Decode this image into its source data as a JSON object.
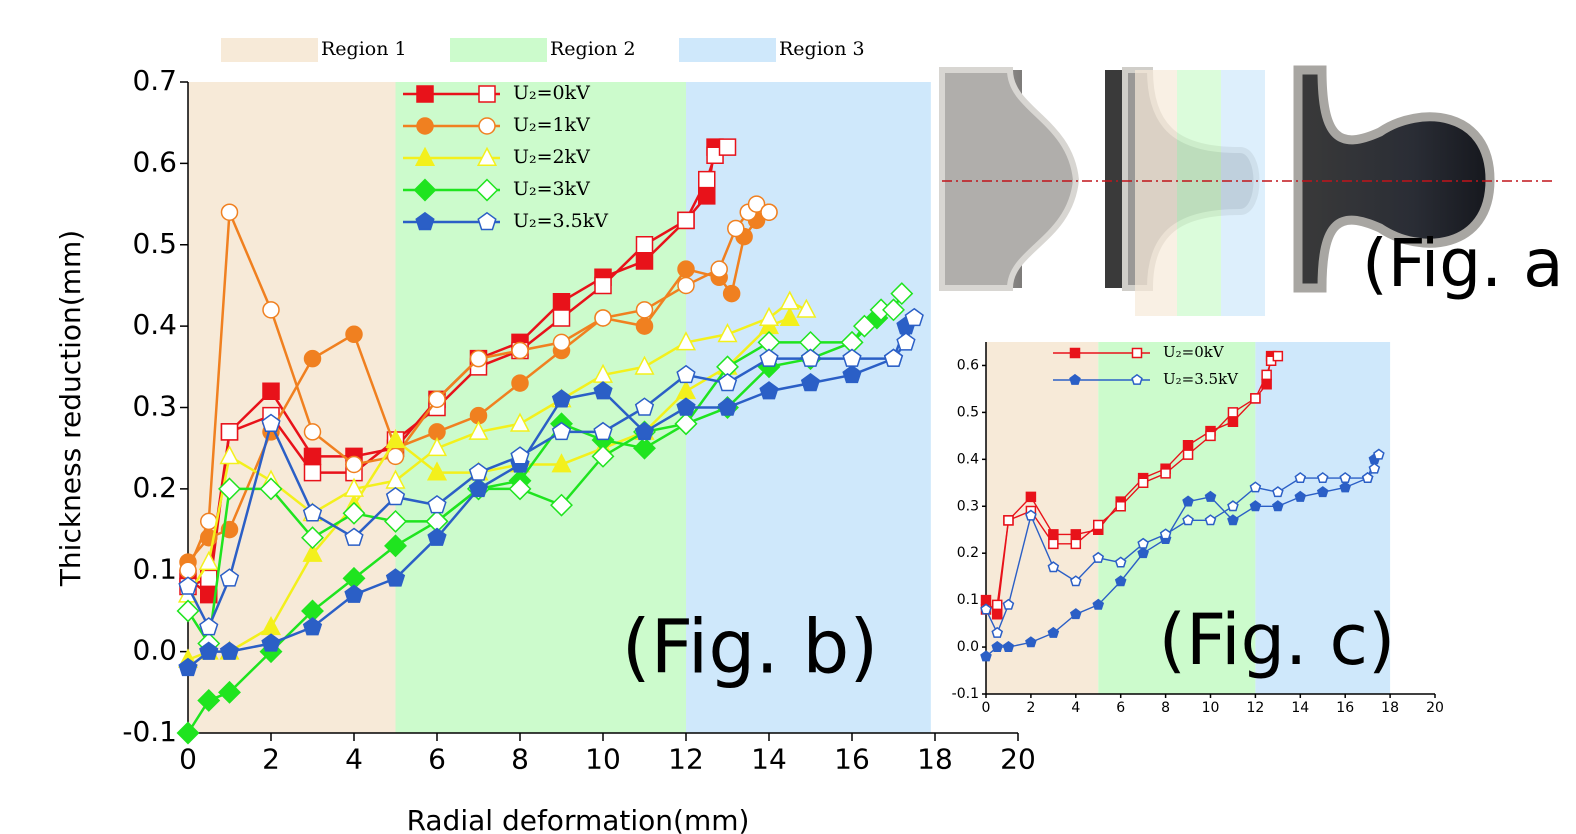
{
  "chart_data": [
    {
      "type": "line",
      "annotation": "(Fig. b)",
      "x_label": "Radial deformation(mm)",
      "y_label": "Thickness reduction(mm)",
      "xlim": [
        0,
        20
      ],
      "ylim": [
        -0.1,
        0.7
      ],
      "xticks": [
        0,
        2,
        4,
        6,
        8,
        10,
        12,
        14,
        16,
        18,
        20
      ],
      "yticks": [
        -0.1,
        {
          "value": 0,
          "label": "0.0"
        },
        0.1,
        0.2,
        0.3,
        0.4,
        0.5,
        0.6,
        0.7
      ],
      "regions": [
        {
          "name": "Region 1",
          "range": [
            0,
            5
          ],
          "color": "#f7ead8"
        },
        {
          "name": "Region 2",
          "range": [
            5,
            12
          ],
          "color": "#ccfbcc"
        },
        {
          "name": "Region 3",
          "range": [
            12,
            17.9
          ],
          "color": "#cfe8fb"
        }
      ],
      "series": [
        {
          "name": "U₂=0kV",
          "color": "#e8121a",
          "marker": "square",
          "filled": {
            "x": [
              0,
              0.5,
              1,
              2,
              3,
              4,
              5,
              6,
              7,
              8,
              9,
              10,
              11,
              12,
              12.5,
              12.7
            ],
            "values": [
              0.09,
              0.07,
              0.27,
              0.32,
              0.24,
              0.24,
              0.25,
              0.31,
              0.36,
              0.38,
              0.43,
              0.46,
              0.48,
              0.53,
              0.56,
              0.62
            ]
          },
          "open": {
            "x": [
              0,
              0.5,
              1,
              2,
              3,
              4,
              5,
              6,
              7,
              8,
              9,
              10,
              11,
              12,
              12.5,
              12.7,
              13
            ],
            "values": [
              0.08,
              0.09,
              0.27,
              0.29,
              0.22,
              0.22,
              0.26,
              0.3,
              0.35,
              0.37,
              0.41,
              0.45,
              0.5,
              0.53,
              0.58,
              0.61,
              0.62
            ]
          }
        },
        {
          "name": "U₂=1kV",
          "color": "#f08020",
          "marker": "circle",
          "filled": {
            "x": [
              0,
              0.5,
              1,
              2,
              3,
              4,
              5,
              6,
              7,
              8,
              9,
              10,
              11,
              12,
              12.8,
              13.1,
              13.4,
              13.7,
              14
            ],
            "values": [
              0.11,
              0.14,
              0.15,
              0.27,
              0.36,
              0.39,
              0.25,
              0.27,
              0.29,
              0.33,
              0.37,
              0.41,
              0.4,
              0.47,
              0.46,
              0.44,
              0.51,
              0.53,
              0.54
            ]
          },
          "open": {
            "x": [
              0,
              0.5,
              1,
              2,
              3,
              4,
              5,
              6,
              7,
              8,
              9,
              10,
              11,
              12,
              12.8,
              13.2,
              13.5,
              13.7,
              14
            ],
            "values": [
              0.1,
              0.16,
              0.54,
              0.42,
              0.27,
              0.23,
              0.24,
              0.31,
              0.36,
              0.37,
              0.38,
              0.41,
              0.42,
              0.45,
              0.47,
              0.52,
              0.54,
              0.55,
              0.54
            ]
          }
        },
        {
          "name": "U₂=2kV",
          "color": "#f3f01c",
          "marker": "triangle",
          "filled": {
            "x": [
              0,
              0.5,
              1,
              2,
              3,
              4,
              5,
              6,
              7,
              8,
              9,
              10,
              11,
              12,
              13,
              14,
              14.5
            ],
            "values": [
              -0.01,
              0.0,
              0.0,
              0.03,
              0.12,
              0.18,
              0.26,
              0.22,
              0.22,
              0.23,
              0.23,
              0.25,
              0.27,
              0.32,
              0.35,
              0.4,
              0.41
            ]
          },
          "open": {
            "x": [
              0,
              0.5,
              1,
              2,
              3,
              4,
              5,
              6,
              7,
              8,
              9,
              10,
              11,
              12,
              13,
              14,
              14.5,
              14.9
            ],
            "values": [
              0.07,
              0.11,
              0.24,
              0.21,
              0.17,
              0.2,
              0.21,
              0.25,
              0.27,
              0.28,
              0.31,
              0.34,
              0.35,
              0.38,
              0.39,
              0.41,
              0.43,
              0.42
            ]
          }
        },
        {
          "name": "U₂=3kV",
          "color": "#1fe41f",
          "marker": "diamond",
          "filled": {
            "x": [
              0,
              0.5,
              1,
              2,
              3,
              4,
              5,
              6,
              7,
              8,
              9,
              10,
              11,
              12,
              13,
              14,
              15,
              16,
              16.6
            ],
            "values": [
              -0.1,
              -0.06,
              -0.05,
              0.0,
              0.05,
              0.09,
              0.13,
              0.16,
              0.2,
              0.21,
              0.28,
              0.26,
              0.25,
              0.28,
              0.3,
              0.35,
              0.36,
              0.38,
              0.41
            ]
          },
          "open": {
            "x": [
              0,
              0.5,
              1,
              2,
              3,
              4,
              5,
              6,
              7,
              8,
              9,
              10,
              11,
              12,
              13,
              14,
              15,
              16,
              16.3,
              16.7,
              17,
              17.2
            ],
            "values": [
              0.05,
              0.01,
              0.2,
              0.2,
              0.14,
              0.17,
              0.16,
              0.16,
              0.2,
              0.2,
              0.18,
              0.24,
              0.27,
              0.28,
              0.35,
              0.38,
              0.38,
              0.38,
              0.4,
              0.42,
              0.42,
              0.44
            ]
          }
        },
        {
          "name": "U₂=3.5kV",
          "color": "#2b5fc6",
          "marker": "pentagon",
          "filled": {
            "x": [
              0,
              0.5,
              1,
              2,
              3,
              4,
              5,
              6,
              7,
              8,
              9,
              10,
              11,
              12,
              13,
              14,
              15,
              16,
              17,
              17.3
            ],
            "values": [
              -0.02,
              0.0,
              0.0,
              0.01,
              0.03,
              0.07,
              0.09,
              0.14,
              0.2,
              0.23,
              0.31,
              0.32,
              0.27,
              0.3,
              0.3,
              0.32,
              0.33,
              0.34,
              0.36,
              0.4
            ]
          },
          "open": {
            "x": [
              0,
              0.5,
              1,
              2,
              3,
              4,
              5,
              6,
              7,
              8,
              9,
              10,
              11,
              12,
              13,
              14,
              15,
              16,
              17,
              17.3,
              17.5
            ],
            "values": [
              0.08,
              0.03,
              0.09,
              0.28,
              0.17,
              0.14,
              0.19,
              0.18,
              0.22,
              0.24,
              0.27,
              0.27,
              0.3,
              0.34,
              0.33,
              0.36,
              0.36,
              0.36,
              0.36,
              0.38,
              0.41
            ]
          }
        }
      ]
    },
    {
      "type": "line",
      "annotation": "(Fig. c)",
      "xlim": [
        0,
        20
      ],
      "ylim": [
        -0.1,
        0.65
      ],
      "xticks": [
        0,
        2,
        4,
        6,
        8,
        10,
        12,
        14,
        16,
        18,
        20
      ],
      "yticks": [
        -0.1,
        {
          "value": 0,
          "label": "0.0"
        },
        0.1,
        0.2,
        0.3,
        0.4,
        0.5,
        0.6
      ],
      "regions": [
        {
          "range": [
            0,
            5
          ],
          "color": "#f7ead8"
        },
        {
          "range": [
            5,
            12
          ],
          "color": "#ccfbcc"
        },
        {
          "range": [
            12,
            18
          ],
          "color": "#cfe8fb"
        }
      ],
      "series": [
        {
          "name": "U₂=0kV",
          "color": "#e8121a",
          "marker": "square",
          "filled": {
            "x": [
              0,
              0.5,
              1,
              2,
              3,
              4,
              5,
              6,
              7,
              8,
              9,
              10,
              11,
              12,
              12.5,
              12.7
            ],
            "values": [
              0.1,
              0.07,
              0.27,
              0.32,
              0.24,
              0.24,
              0.25,
              0.31,
              0.36,
              0.38,
              0.43,
              0.46,
              0.48,
              0.53,
              0.56,
              0.62
            ]
          },
          "open": {
            "x": [
              0,
              0.5,
              1,
              2,
              3,
              4,
              5,
              6,
              7,
              8,
              9,
              10,
              11,
              12,
              12.5,
              12.7,
              13
            ],
            "values": [
              0.08,
              0.09,
              0.27,
              0.29,
              0.22,
              0.22,
              0.26,
              0.3,
              0.35,
              0.37,
              0.41,
              0.45,
              0.5,
              0.53,
              0.58,
              0.61,
              0.62
            ]
          }
        },
        {
          "name": "U₂=3.5kV",
          "color": "#2b5fc6",
          "marker": "pentagon",
          "filled": {
            "x": [
              0,
              0.5,
              1,
              2,
              3,
              4,
              5,
              6,
              7,
              8,
              9,
              10,
              11,
              12,
              13,
              14,
              15,
              16,
              17,
              17.3
            ],
            "values": [
              -0.02,
              0.0,
              0.0,
              0.01,
              0.03,
              0.07,
              0.09,
              0.14,
              0.2,
              0.23,
              0.31,
              0.32,
              0.27,
              0.3,
              0.3,
              0.32,
              0.33,
              0.34,
              0.36,
              0.4
            ]
          },
          "open": {
            "x": [
              0,
              0.5,
              1,
              2,
              3,
              4,
              5,
              6,
              7,
              8,
              9,
              10,
              11,
              12,
              13,
              14,
              15,
              16,
              17,
              17.3,
              17.5
            ],
            "values": [
              0.08,
              0.03,
              0.09,
              0.28,
              0.17,
              0.14,
              0.19,
              0.18,
              0.22,
              0.24,
              0.27,
              0.27,
              0.3,
              0.34,
              0.33,
              0.36,
              0.36,
              0.36,
              0.36,
              0.38,
              0.41
            ]
          }
        }
      ]
    }
  ],
  "photo_panel": {
    "label": "(Fig. a"
  }
}
